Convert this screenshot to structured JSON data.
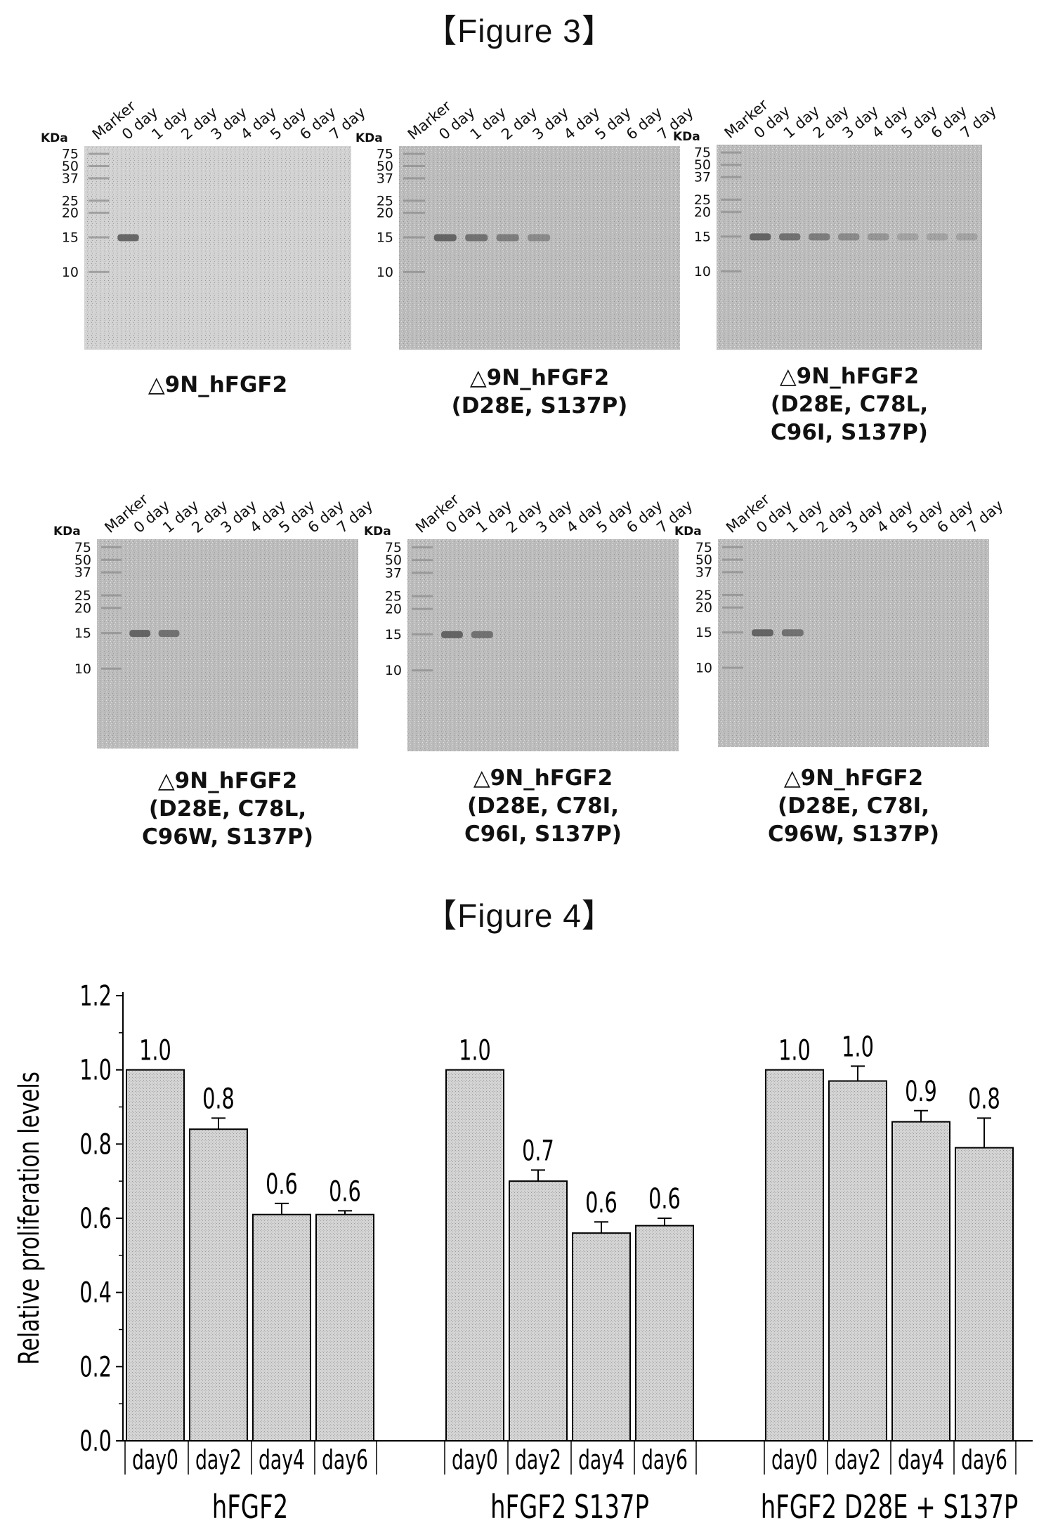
{
  "figure3": {
    "title": "【Figure 3】",
    "unit_label": "KDa",
    "lanes": [
      "Marker",
      "0 day",
      "1 day",
      "2 day",
      "3 day",
      "4 day",
      "5 day",
      "6 day",
      "7 day"
    ],
    "markers": [
      "75",
      "50",
      "37",
      "25",
      "20",
      "15",
      "10"
    ],
    "panels": [
      {
        "caption": [
          "△9N_hFGF2"
        ]
      },
      {
        "caption": [
          "△9N_hFGF2",
          "(D28E,  S137P)"
        ]
      },
      {
        "caption": [
          "△9N_hFGF2",
          "(D28E,  C78L,",
          "C96I, S137P)"
        ]
      },
      {
        "caption": [
          "△9N_hFGF2",
          "(D28E,  C78L,",
          "C96W, S137P)"
        ]
      },
      {
        "caption": [
          "△9N_hFGF2",
          "(D28E,  C78I,",
          "C96I, S137P)"
        ]
      },
      {
        "caption": [
          "△9N_hFGF2",
          "(D28E,  C78I,",
          "C96W, S137P)"
        ]
      }
    ]
  },
  "figure4": {
    "title": "【Figure 4】"
  },
  "chart_data": {
    "type": "bar",
    "ylabel": "Relative proliferation levels",
    "ylim": [
      0.0,
      1.2
    ],
    "yticks": [
      "0.0",
      "0.2",
      "0.4",
      "0.6",
      "0.8",
      "1.0",
      "1.2"
    ],
    "categories": [
      "day0",
      "day2",
      "day4",
      "day6"
    ],
    "groups": [
      {
        "name": "hFGF2",
        "values": [
          1.0,
          0.84,
          0.61,
          0.61
        ],
        "errors": [
          0.0,
          0.03,
          0.03,
          0.01
        ],
        "labels": [
          "1.0",
          "0.8",
          "0.6",
          "0.6"
        ]
      },
      {
        "name": "hFGF2 S137P",
        "values": [
          1.0,
          0.7,
          0.56,
          0.58
        ],
        "errors": [
          0.0,
          0.03,
          0.03,
          0.02
        ],
        "labels": [
          "1.0",
          "0.7",
          "0.6",
          "0.6"
        ]
      },
      {
        "name": "hFGF2 D28E + S137P",
        "values": [
          1.0,
          0.97,
          0.86,
          0.79
        ],
        "errors": [
          0.0,
          0.04,
          0.03,
          0.08
        ],
        "labels": [
          "1.0",
          "1.0",
          "0.9",
          "0.8"
        ]
      }
    ],
    "colors": {
      "bar_fill": "#cfcfcf",
      "bar_stroke": "#000000"
    }
  }
}
